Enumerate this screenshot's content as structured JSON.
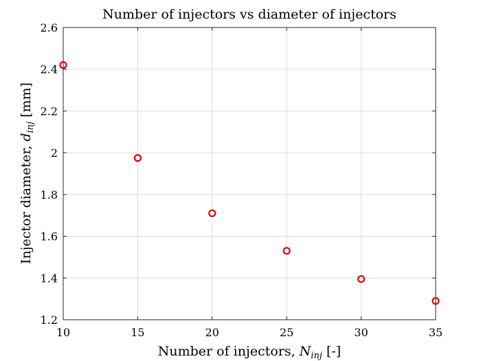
{
  "chart_data": {
    "type": "scatter",
    "title": "Number of injectors vs diameter of injectors",
    "xlabel": {
      "text": "Number of injectors, ",
      "sym": "N",
      "sub": "inj",
      "tail": " [-]"
    },
    "ylabel": {
      "text": "Injector diameter, ",
      "sym": "d",
      "sub": "inj",
      "tail": " [mm]"
    },
    "xlim": [
      10,
      35
    ],
    "ylim": [
      1.2,
      2.6
    ],
    "xticks": [
      "10",
      "15",
      "20",
      "25",
      "30",
      "35"
    ],
    "yticks": [
      "1.2",
      "1.4",
      "1.6",
      "1.8",
      "2",
      "2.2",
      "2.4",
      "2.6"
    ],
    "grid": true,
    "marker": "circle-open",
    "color": "#e00000",
    "x": [
      10,
      15,
      20,
      25,
      30,
      35
    ],
    "y": [
      2.42,
      1.975,
      1.71,
      1.53,
      1.395,
      1.29
    ]
  }
}
